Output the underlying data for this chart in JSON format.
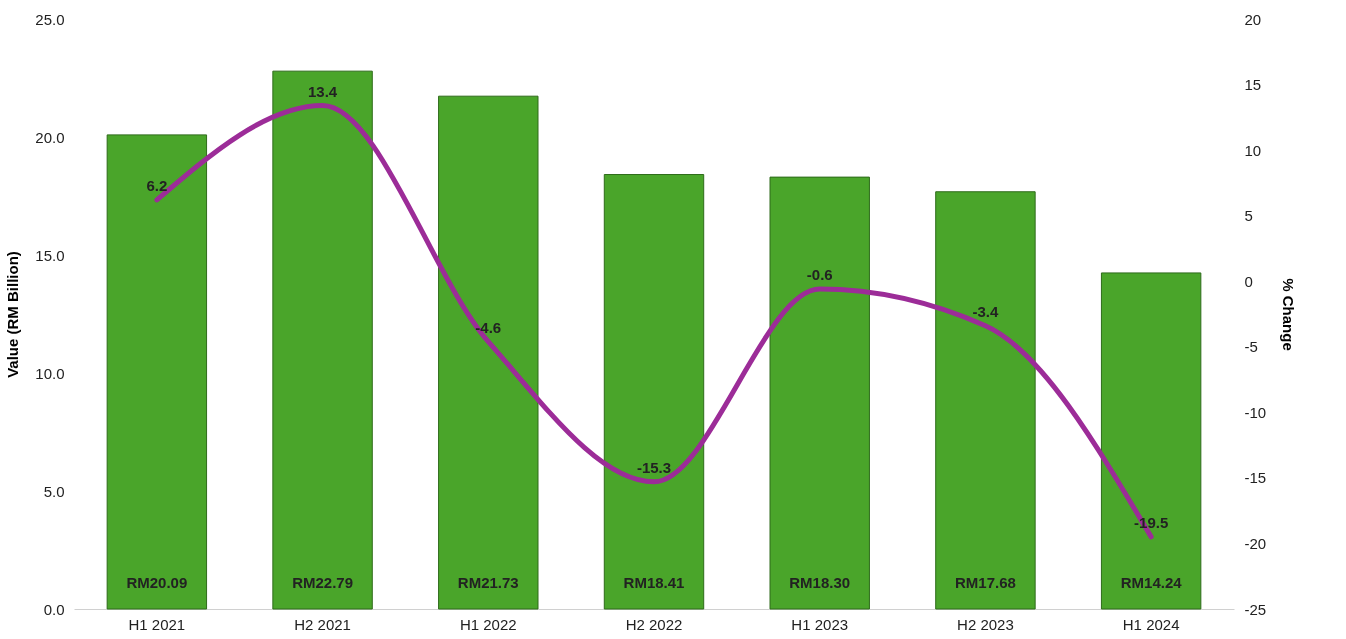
{
  "chart_data": {
    "type": "bar",
    "categories": [
      "H1 2021",
      "H2 2021",
      "H1 2022",
      "H2 2022",
      "H1 2023",
      "H2 2023",
      "H1 2024"
    ],
    "ylabel": "Value (RM Billion)",
    "y2label": "% Change",
    "ylim": [
      0,
      25
    ],
    "yticks": [
      {
        "value": 0,
        "label": "0.0"
      },
      {
        "value": 5,
        "label": "5.0"
      },
      {
        "value": 10,
        "label": "10.0"
      },
      {
        "value": 15,
        "label": "15.0"
      },
      {
        "value": 20,
        "label": "20.0"
      },
      {
        "value": 25,
        "label": "25.0"
      }
    ],
    "y2lim": [
      -25,
      20
    ],
    "y2ticks": [
      -25,
      -20,
      -15,
      -10,
      -5,
      0,
      5,
      10,
      15,
      20
    ],
    "grid": false,
    "series": [
      {
        "color": "#4aa52a",
        "values": [
          20.09,
          22.79,
          21.73,
          18.41,
          18.3,
          17.68,
          14.24
        ],
        "value_labels": [
          "RM20.09",
          "RM22.79",
          "RM21.73",
          "RM18.41",
          "RM18.30",
          "RM17.68",
          "RM14.24"
        ]
      },
      {
        "type": "line",
        "axis": "y2",
        "color": "#9c2c98",
        "values": [
          6.2,
          13.4,
          -4.6,
          -15.3,
          -0.6,
          -3.4,
          -19.5
        ],
        "value_labels": [
          "6.2",
          "13.4",
          "-4.6",
          "-15.3",
          "-0.6",
          "-3.4",
          "-19.5"
        ]
      }
    ]
  }
}
